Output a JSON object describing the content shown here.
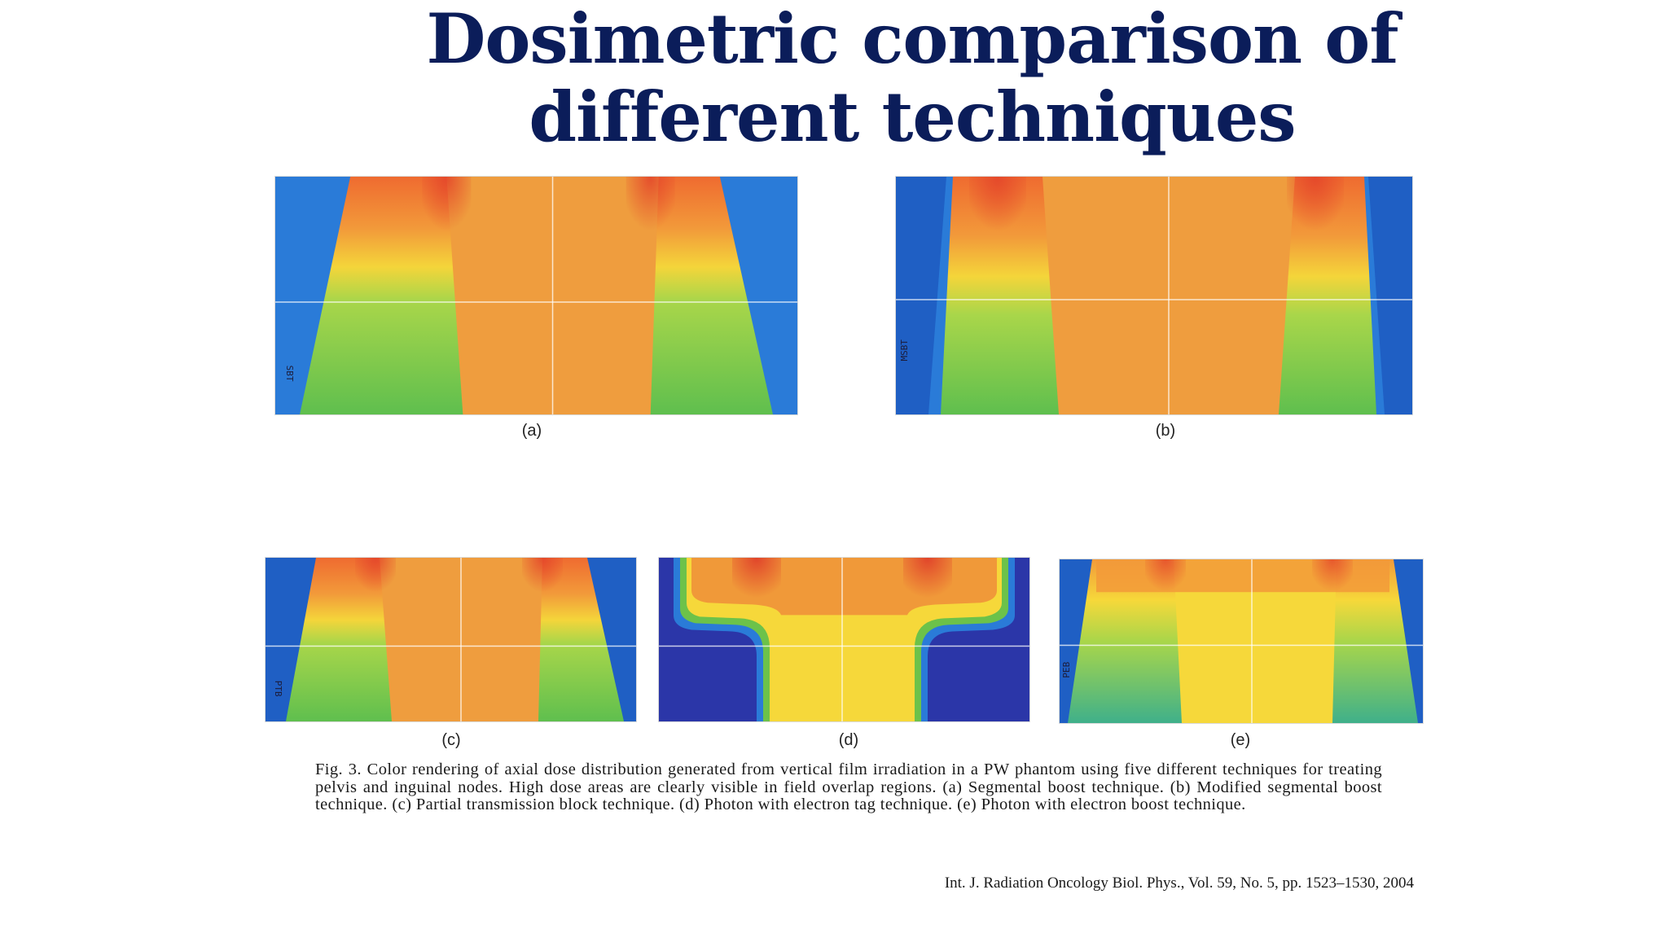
{
  "slide": {
    "title": "Dosimetric comparison of different techniques"
  },
  "panels": [
    {
      "label": "(a)",
      "technique": "Segmental boost technique",
      "annotation": "SBT"
    },
    {
      "label": "(b)",
      "technique": "Modified segmental boost technique",
      "annotation": "MSBT"
    },
    {
      "label": "(c)",
      "technique": "Partial transmission block technique",
      "annotation": "PTB"
    },
    {
      "label": "(d)",
      "technique": "Photon with electron tag technique",
      "annotation": ""
    },
    {
      "label": "(e)",
      "technique": "Photon with electron boost technique",
      "annotation": "PEB"
    }
  ],
  "caption": {
    "text": "Fig. 3. Color rendering of axial dose distribution generated from vertical film irradiation in a PW phantom using five different techniques for treating pelvis and inguinal nodes. High dose areas are clearly visible in field overlap regions. (a) Segmental boost technique. (b) Modified segmental boost technique. (c) Partial transmission block technique. (d) Photon with electron tag technique. (e) Photon with electron boost technique."
  },
  "citation": {
    "text": "Int. J. Radiation Oncology Biol. Phys., Vol. 59, No. 5, pp. 1523–1530, 2004"
  },
  "colors": {
    "title": "#0b1d5a",
    "dose_high": "#e8502a",
    "dose_mid_high": "#f0923a",
    "dose_mid": "#f6d83a",
    "dose_low": "#6cc24a",
    "dose_background": "#1f5fc4"
  }
}
